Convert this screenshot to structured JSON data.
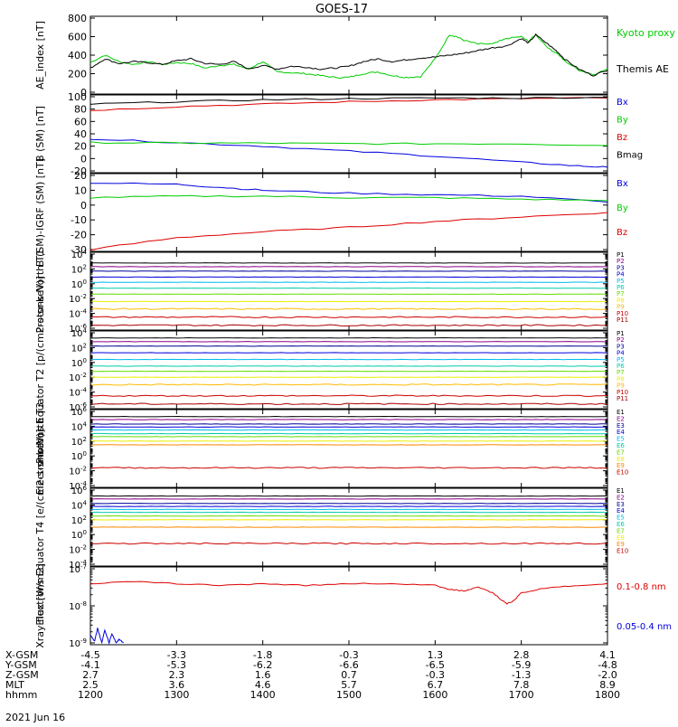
{
  "title": "GOES-17",
  "date_label": "2021 Jun 16",
  "colors": {
    "black": "#000000",
    "red": "#dd0000",
    "green": "#00cc00",
    "blue": "#0000dd",
    "navy": "#000099",
    "purple": "#880088",
    "cyan": "#00bbee",
    "teal": "#00ccaa",
    "lime": "#66dd00",
    "yellow": "#eeee00",
    "gold": "#ffbb00",
    "orange": "#ff8800",
    "darkred": "#cc0000",
    "maroon": "#aa0000"
  },
  "time_axis": {
    "start": 1200,
    "end": 1800,
    "row_labels": [
      "X-GSM",
      "Y-GSM",
      "Z-GSM",
      "MLT",
      "hhmm"
    ],
    "columns": [
      {
        "hhmm": "1200",
        "x": "-4.5",
        "y": "-4.1",
        "z": "2.7",
        "mlt": "2.5"
      },
      {
        "hhmm": "1300",
        "x": "-3.3",
        "y": "-5.3",
        "z": "2.3",
        "mlt": "3.6"
      },
      {
        "hhmm": "1400",
        "x": "-1.8",
        "y": "-6.2",
        "z": "1.6",
        "mlt": "4.6"
      },
      {
        "hhmm": "1500",
        "x": "-0.3",
        "y": "-6.6",
        "z": "0.7",
        "mlt": "5.7"
      },
      {
        "hhmm": "1600",
        "x": "1.3",
        "y": "-6.5",
        "z": "-0.3",
        "mlt": "6.7"
      },
      {
        "hhmm": "1700",
        "x": "2.8",
        "y": "-5.9",
        "z": "-1.3",
        "mlt": "7.8"
      },
      {
        "hhmm": "1800",
        "x": "4.1",
        "y": "-4.8",
        "z": "-2.0",
        "mlt": "8.9"
      }
    ]
  },
  "chart_data": [
    {
      "type": "line",
      "ylabel": "AE_index [nT]",
      "ylim": [
        0,
        800
      ],
      "yticks": [
        0,
        200,
        400,
        600,
        800
      ],
      "series": [
        {
          "name": "Kyoto proxy AE",
          "color": "green",
          "x": [
            1200,
            1210,
            1220,
            1230,
            1240,
            1250,
            1300,
            1310,
            1320,
            1330,
            1340,
            1350,
            1400,
            1410,
            1420,
            1430,
            1440,
            1450,
            1500,
            1510,
            1520,
            1530,
            1540,
            1550,
            1600,
            1610,
            1615,
            1620,
            1630,
            1640,
            1650,
            1700,
            1705,
            1710,
            1720,
            1725,
            1730,
            1740,
            1750,
            1800
          ],
          "y": [
            320,
            400,
            330,
            300,
            330,
            300,
            320,
            310,
            260,
            290,
            300,
            250,
            330,
            220,
            210,
            200,
            180,
            160,
            160,
            200,
            220,
            180,
            160,
            170,
            360,
            620,
            600,
            560,
            520,
            520,
            580,
            600,
            550,
            620,
            460,
            420,
            340,
            240,
            190,
            250
          ]
        },
        {
          "name": "Themis AE",
          "color": "black",
          "x": [
            1200,
            1210,
            1220,
            1230,
            1240,
            1250,
            1300,
            1310,
            1320,
            1330,
            1340,
            1350,
            1400,
            1410,
            1420,
            1430,
            1440,
            1450,
            1500,
            1510,
            1520,
            1530,
            1540,
            1550,
            1600,
            1610,
            1620,
            1630,
            1640,
            1650,
            1700,
            1705,
            1710,
            1720,
            1725,
            1730,
            1740,
            1750,
            1800
          ],
          "y": [
            260,
            360,
            310,
            330,
            320,
            300,
            340,
            360,
            310,
            300,
            330,
            250,
            290,
            250,
            280,
            270,
            250,
            260,
            280,
            330,
            360,
            330,
            350,
            370,
            380,
            400,
            420,
            450,
            480,
            500,
            580,
            530,
            620,
            500,
            440,
            360,
            250,
            180,
            240
          ]
        }
      ]
    },
    {
      "type": "line",
      "ylabel": "B (SM) [nT]",
      "ylim": [
        -20,
        100
      ],
      "yticks": [
        -20,
        0,
        20,
        40,
        60,
        80,
        100
      ],
      "series": [
        {
          "name": "Bx",
          "color": "blue",
          "x": [
            1200,
            1300,
            1400,
            1500,
            1600,
            1700,
            1740,
            1800
          ],
          "y": [
            32,
            26,
            20,
            12,
            4,
            -6,
            -12,
            -14
          ]
        },
        {
          "name": "By",
          "color": "green",
          "x": [
            1200,
            1300,
            1400,
            1500,
            1600,
            1700,
            1800
          ],
          "y": [
            26,
            25,
            25,
            24,
            24,
            24,
            21
          ]
        },
        {
          "name": "Bz",
          "color": "red",
          "x": [
            1200,
            1300,
            1400,
            1500,
            1600,
            1700,
            1800
          ],
          "y": [
            78,
            84,
            88,
            92,
            95,
            97,
            98
          ]
        },
        {
          "name": "Bmag",
          "color": "black",
          "x": [
            1200,
            1300,
            1400,
            1500,
            1600,
            1700,
            1800
          ],
          "y": [
            88,
            92,
            95,
            97,
            98,
            98,
            99
          ]
        }
      ]
    },
    {
      "type": "line",
      "ylabel": "B (SM)-IGRF (SM) [nT]",
      "ylim": [
        -30,
        20
      ],
      "yticks": [
        -30,
        -20,
        -10,
        0,
        10,
        20
      ],
      "series": [
        {
          "name": "Bx",
          "color": "blue",
          "x": [
            1200,
            1300,
            1330,
            1400,
            1500,
            1600,
            1700,
            1800
          ],
          "y": [
            15,
            14,
            12,
            10,
            8,
            7,
            6,
            2
          ]
        },
        {
          "name": "By",
          "color": "green",
          "x": [
            1200,
            1300,
            1400,
            1500,
            1600,
            1700,
            1800
          ],
          "y": [
            5,
            6,
            6,
            5,
            5,
            4,
            3
          ]
        },
        {
          "name": "Bz",
          "color": "red",
          "x": [
            1200,
            1300,
            1400,
            1500,
            1600,
            1700,
            1800
          ],
          "y": [
            -30,
            -22,
            -18,
            -15,
            -11,
            -8,
            -5
          ]
        }
      ]
    },
    {
      "type": "line",
      "ylabel": "Protons North T1",
      "yscale": "log",
      "ylim_exp": [
        -6,
        4
      ],
      "yticks_exp": [
        -6,
        -4,
        -2,
        0,
        2,
        4
      ],
      "series": [
        {
          "name": "P1",
          "color": "black",
          "level_exp": 2.8
        },
        {
          "name": "P2",
          "color": "purple",
          "level_exp": 2.3
        },
        {
          "name": "P3",
          "color": "navy",
          "level_exp": 1.7
        },
        {
          "name": "P4",
          "color": "blue",
          "level_exp": 0.9
        },
        {
          "name": "P5",
          "color": "cyan",
          "level_exp": 0.2
        },
        {
          "name": "P6",
          "color": "teal",
          "level_exp": -0.6
        },
        {
          "name": "P7",
          "color": "lime",
          "level_exp": -1.4
        },
        {
          "name": "P8",
          "color": "yellow",
          "level_exp": -2.4
        },
        {
          "name": "P9",
          "color": "gold",
          "level_exp": -3.4
        },
        {
          "name": "P10",
          "color": "darkred",
          "level_exp": -4.5
        },
        {
          "name": "P11",
          "color": "maroon",
          "level_exp": -5.6
        }
      ]
    },
    {
      "type": "line",
      "ylabel": "Protons Equator T2 [p/(cm2-s-sr-keV)]",
      "yscale": "log",
      "ylim_exp": [
        -6,
        4
      ],
      "yticks_exp": [
        -6,
        -4,
        -2,
        0,
        2,
        4
      ],
      "series": [
        {
          "name": "P1",
          "color": "black",
          "level_exp": 3.3
        },
        {
          "name": "P2",
          "color": "purple",
          "level_exp": 2.8
        },
        {
          "name": "P3",
          "color": "navy",
          "level_exp": 2.2
        },
        {
          "name": "P4",
          "color": "blue",
          "level_exp": 1.3
        },
        {
          "name": "P5",
          "color": "cyan",
          "level_exp": 0.4
        },
        {
          "name": "P6",
          "color": "teal",
          "level_exp": -0.5
        },
        {
          "name": "P7",
          "color": "lime",
          "level_exp": -1.2
        },
        {
          "name": "P8",
          "color": "yellow",
          "level_exp": -2.0
        },
        {
          "name": "P9",
          "color": "gold",
          "level_exp": -3.0
        },
        {
          "name": "P10",
          "color": "darkred",
          "level_exp": -4.5
        },
        {
          "name": "P11",
          "color": "maroon",
          "level_exp": -5.6
        }
      ]
    },
    {
      "type": "line",
      "ylabel": "Electrons North T3",
      "yscale": "log",
      "ylim_exp": [
        -4,
        6
      ],
      "yticks_exp": [
        -4,
        -2,
        0,
        2,
        4,
        6
      ],
      "series": [
        {
          "name": "E1",
          "color": "black",
          "level_exp": 5.3
        },
        {
          "name": "E2",
          "color": "purple",
          "level_exp": 4.9
        },
        {
          "name": "E3",
          "color": "navy",
          "level_exp": 4.3
        },
        {
          "name": "E4",
          "color": "blue",
          "level_exp": 3.9
        },
        {
          "name": "E5",
          "color": "cyan",
          "level_exp": 3.5
        },
        {
          "name": "E6",
          "color": "teal",
          "level_exp": 3.0
        },
        {
          "name": "E7",
          "color": "lime",
          "level_exp": 2.6
        },
        {
          "name": "E8",
          "color": "yellow",
          "level_exp": 2.0
        },
        {
          "name": "E9",
          "color": "orange",
          "level_exp": 1.5
        },
        {
          "name": "E10",
          "color": "darkred",
          "level_exp": -1.6
        }
      ]
    },
    {
      "type": "line",
      "ylabel": "Electrons Equator T4 [e/(cm2-s-sr-keV)]",
      "yscale": "log",
      "ylim_exp": [
        -4,
        6
      ],
      "yticks_exp": [
        -4,
        -2,
        0,
        2,
        4,
        6
      ],
      "series": [
        {
          "name": "E1",
          "color": "black",
          "level_exp": 5.2
        },
        {
          "name": "E2",
          "color": "purple",
          "level_exp": 4.8
        },
        {
          "name": "E3",
          "color": "navy",
          "level_exp": 4.2
        },
        {
          "name": "E4",
          "color": "blue",
          "level_exp": 3.8
        },
        {
          "name": "E5",
          "color": "cyan",
          "level_exp": 3.4
        },
        {
          "name": "E6",
          "color": "teal",
          "level_exp": 3.0
        },
        {
          "name": "E7",
          "color": "lime",
          "level_exp": 2.5
        },
        {
          "name": "E8",
          "color": "yellow",
          "level_exp": 2.0
        },
        {
          "name": "E9",
          "color": "orange",
          "level_exp": 1.0
        },
        {
          "name": "E10",
          "color": "darkred",
          "level_exp": -1.2
        }
      ]
    },
    {
      "type": "line",
      "ylabel": "Xray flux [W/m2]",
      "yscale": "log",
      "ylim_exp": [
        -9,
        -7
      ],
      "yticks_exp": [
        -9,
        -8,
        -7
      ],
      "series": [
        {
          "name": "0.1-0.8 nm",
          "color": "red",
          "x": [
            1200,
            1230,
            1300,
            1330,
            1400,
            1430,
            1500,
            1530,
            1600,
            1610,
            1620,
            1630,
            1640,
            1645,
            1650,
            1655,
            1700,
            1720,
            1740,
            1800
          ],
          "y_exp": [
            -7.4,
            -7.35,
            -7.4,
            -7.45,
            -7.4,
            -7.45,
            -7.4,
            -7.4,
            -7.45,
            -7.55,
            -7.6,
            -7.5,
            -7.65,
            -7.8,
            -7.95,
            -7.85,
            -7.65,
            -7.5,
            -7.45,
            -7.4
          ]
        },
        {
          "name": "0.05-0.4 nm",
          "color": "blue",
          "x": [
            1200,
            1203,
            1205,
            1208,
            1210,
            1213,
            1215,
            1218,
            1220,
            1223
          ],
          "y_exp": [
            -8.8,
            -8.95,
            -8.6,
            -9.0,
            -8.65,
            -9.0,
            -8.75,
            -9.0,
            -8.9,
            -9.0
          ]
        }
      ]
    }
  ]
}
